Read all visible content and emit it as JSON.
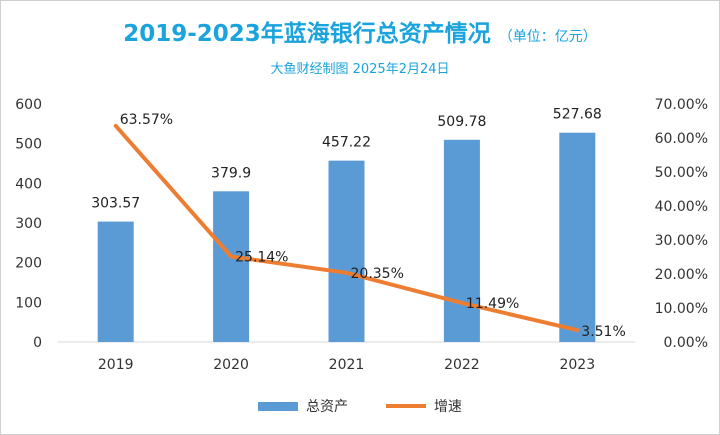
{
  "chart_data": {
    "type": "bar",
    "title": "2019-2023年蓝海银行总资产情况",
    "unit_note": "（单位：亿元）",
    "subtitle": "大鱼财经制图 2025年2月24日",
    "categories": [
      "2019",
      "2020",
      "2021",
      "2022",
      "2023"
    ],
    "series": [
      {
        "name": "总资产",
        "type": "bar",
        "axis": "left",
        "values": [
          303.57,
          379.9,
          457.22,
          509.78,
          527.68
        ],
        "labels": [
          "303.57",
          "379.9",
          "457.22",
          "509.78",
          "527.68"
        ],
        "color": "#5b9bd5"
      },
      {
        "name": "增速",
        "type": "line",
        "axis": "right",
        "values": [
          63.57,
          25.14,
          20.35,
          11.49,
          3.51
        ],
        "labels": [
          "63.57%",
          "25.14%",
          "20.35%",
          "11.49%",
          "3.51%"
        ],
        "color": "#ed7d31"
      }
    ],
    "y_left": {
      "ylim": [
        0,
        600
      ],
      "ticks": [
        "0",
        "100",
        "200",
        "300",
        "400",
        "500",
        "600"
      ]
    },
    "y_right": {
      "ylim": [
        0,
        70
      ],
      "ticks": [
        "0.00%",
        "10.00%",
        "20.00%",
        "30.00%",
        "40.00%",
        "50.00%",
        "60.00%",
        "70.00%"
      ]
    },
    "grid": false,
    "legend_position": "bottom"
  }
}
